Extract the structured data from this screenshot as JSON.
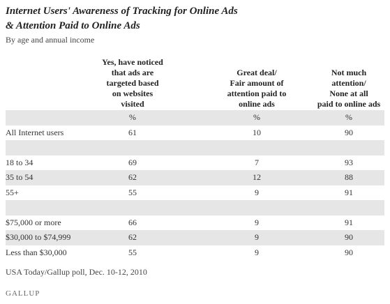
{
  "header": {
    "title_lines": [
      "Internet Users' Awareness of Tracking for Online Ads",
      "& Attention Paid to Online Ads"
    ],
    "subtitle": "By age and annual income"
  },
  "table": {
    "columns": [
      [
        "Yes, have noticed",
        "that ads are",
        "targeted based",
        "on websites",
        "visited"
      ],
      [
        "Great deal/",
        "Fair amount of",
        "attention paid to",
        "online ads"
      ],
      [
        "Not much",
        "attention/",
        "None at all",
        "paid to online ads"
      ]
    ],
    "units": [
      "%",
      "%",
      "%"
    ],
    "rows": [
      [
        "All Internet users",
        61,
        10,
        90
      ],
      null,
      [
        "18 to 34",
        69,
        7,
        93
      ],
      [
        "35 to 54",
        62,
        12,
        88
      ],
      [
        "55+",
        55,
        9,
        91
      ],
      null,
      [
        "$75,000 or more",
        66,
        9,
        91
      ],
      [
        "$30,000 to $74,999",
        62,
        9,
        90
      ],
      [
        "Less than $30,000",
        55,
        9,
        90
      ]
    ]
  },
  "footer": {
    "source": "USA Today/Gallup poll, Dec. 10-12, 2010",
    "logo": "GALLUP"
  }
}
